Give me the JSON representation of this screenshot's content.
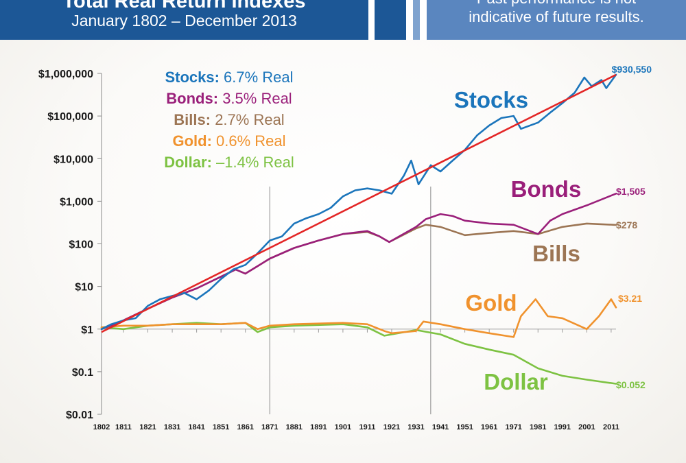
{
  "header": {
    "title": "Total Real Return Indexes",
    "subtitle": "January 1802 – December 2013",
    "disclaimer_line1": "Past performance is not",
    "disclaimer_line2": "indicative of future results."
  },
  "chart_data": {
    "type": "line",
    "y_scale": "log",
    "ylim": [
      0.01,
      1000000
    ],
    "xlim": [
      1802,
      2013
    ],
    "y_ticks": [
      {
        "value": 1000000,
        "label": "$1,000,000"
      },
      {
        "value": 100000,
        "label": "$100,000"
      },
      {
        "value": 10000,
        "label": "$10,000"
      },
      {
        "value": 1000,
        "label": "$1,000"
      },
      {
        "value": 100,
        "label": "$100"
      },
      {
        "value": 10,
        "label": "$10"
      },
      {
        "value": 1,
        "label": "$1"
      },
      {
        "value": 0.1,
        "label": "$0.1"
      },
      {
        "value": 0.01,
        "label": "$0.01"
      }
    ],
    "x_ticks": [
      1802,
      1811,
      1821,
      1831,
      1841,
      1851,
      1861,
      1871,
      1881,
      1891,
      1901,
      1911,
      1921,
      1931,
      1941,
      1951,
      1961,
      1971,
      1981,
      1991,
      2001,
      2011
    ],
    "reference_lines_x": [
      1871,
      1937
    ],
    "legend": [
      {
        "name": "Stocks:",
        "value": "6.7% Real",
        "color": "#1b75bb"
      },
      {
        "name": "Bonds:",
        "value": "3.5% Real",
        "color": "#9a1f7a"
      },
      {
        "name": "Bills:",
        "value": "2.7% Real",
        "color": "#9c7554"
      },
      {
        "name": "Gold:",
        "value": "0.6% Real",
        "color": "#f0922d"
      },
      {
        "name": "Dollar:",
        "value": "–1.4% Real",
        "color": "#7dc242"
      }
    ],
    "trend_line": {
      "color": "#e32626",
      "points": [
        [
          1802,
          0.85
        ],
        [
          2013,
          930550
        ]
      ]
    },
    "series": [
      {
        "name": "Stocks",
        "color": "#1b75bb",
        "end_label": "$930,550",
        "x": [
          1802,
          1806,
          1811,
          1816,
          1821,
          1826,
          1831,
          1836,
          1841,
          1846,
          1851,
          1856,
          1861,
          1866,
          1871,
          1876,
          1881,
          1886,
          1891,
          1896,
          1901,
          1906,
          1911,
          1916,
          1921,
          1926,
          1929,
          1932,
          1937,
          1941,
          1946,
          1951,
          1956,
          1961,
          1966,
          1971,
          1974,
          1981,
          1986,
          1991,
          1996,
          2000,
          2003,
          2007,
          2009,
          2013
        ],
        "y": [
          1,
          1.3,
          1.6,
          1.8,
          3.5,
          5,
          6,
          7,
          5,
          8,
          15,
          25,
          32,
          60,
          120,
          150,
          300,
          400,
          500,
          700,
          1300,
          1800,
          2000,
          1800,
          1500,
          4000,
          9000,
          2500,
          7000,
          5000,
          9000,
          16000,
          35000,
          60000,
          90000,
          100000,
          50000,
          70000,
          120000,
          200000,
          350000,
          800000,
          500000,
          700000,
          450000,
          930550
        ]
      },
      {
        "name": "Bonds",
        "color": "#9a1f7a",
        "end_label": "$1,505",
        "x": [
          1802,
          1811,
          1821,
          1831,
          1841,
          1851,
          1857,
          1861,
          1866,
          1871,
          1881,
          1891,
          1901,
          1911,
          1916,
          1920,
          1931,
          1935,
          1941,
          1946,
          1951,
          1961,
          1971,
          1981,
          1986,
          1991,
          2001,
          2013
        ],
        "y": [
          1,
          1.6,
          3,
          5.5,
          9,
          17,
          25,
          20,
          30,
          45,
          80,
          120,
          170,
          200,
          150,
          110,
          250,
          380,
          500,
          450,
          350,
          300,
          280,
          170,
          350,
          500,
          800,
          1505
        ]
      },
      {
        "name": "Bills",
        "color": "#9c7554",
        "end_label": "$278",
        "x": [
          1802,
          1811,
          1821,
          1831,
          1841,
          1851,
          1857,
          1861,
          1866,
          1871,
          1881,
          1891,
          1901,
          1911,
          1916,
          1920,
          1931,
          1935,
          1941,
          1946,
          1951,
          1961,
          1971,
          1981,
          1991,
          2001,
          2013
        ],
        "y": [
          1,
          1.6,
          3,
          5.5,
          9,
          17,
          25,
          20,
          30,
          45,
          80,
          120,
          170,
          190,
          150,
          110,
          230,
          280,
          250,
          200,
          160,
          180,
          200,
          170,
          250,
          300,
          278
        ]
      },
      {
        "name": "Gold",
        "color": "#f0922d",
        "end_label": "$3.21",
        "x": [
          1802,
          1811,
          1821,
          1831,
          1841,
          1851,
          1861,
          1866,
          1871,
          1881,
          1901,
          1911,
          1918,
          1921,
          1931,
          1934,
          1941,
          1951,
          1961,
          1971,
          1974,
          1980,
          1985,
          1991,
          2001,
          2006,
          2011,
          2013
        ],
        "y": [
          1.1,
          1.2,
          1.2,
          1.3,
          1.3,
          1.3,
          1.4,
          1,
          1.2,
          1.3,
          1.4,
          1.3,
          0.9,
          0.8,
          0.9,
          1.5,
          1.3,
          1,
          0.8,
          0.65,
          2,
          5,
          2,
          1.8,
          1,
          2,
          5,
          3.21
        ]
      },
      {
        "name": "Dollar",
        "color": "#7dc242",
        "end_label": "$0.052",
        "x": [
          1802,
          1811,
          1821,
          1831,
          1841,
          1851,
          1861,
          1866,
          1871,
          1881,
          1901,
          1911,
          1918,
          1921,
          1931,
          1941,
          1951,
          1961,
          1971,
          1981,
          1991,
          2001,
          2013
        ],
        "y": [
          1.1,
          1,
          1.2,
          1.3,
          1.4,
          1.3,
          1.4,
          0.85,
          1.1,
          1.2,
          1.3,
          1.1,
          0.7,
          0.75,
          0.95,
          0.75,
          0.45,
          0.33,
          0.25,
          0.12,
          0.08,
          0.065,
          0.052
        ]
      }
    ]
  }
}
